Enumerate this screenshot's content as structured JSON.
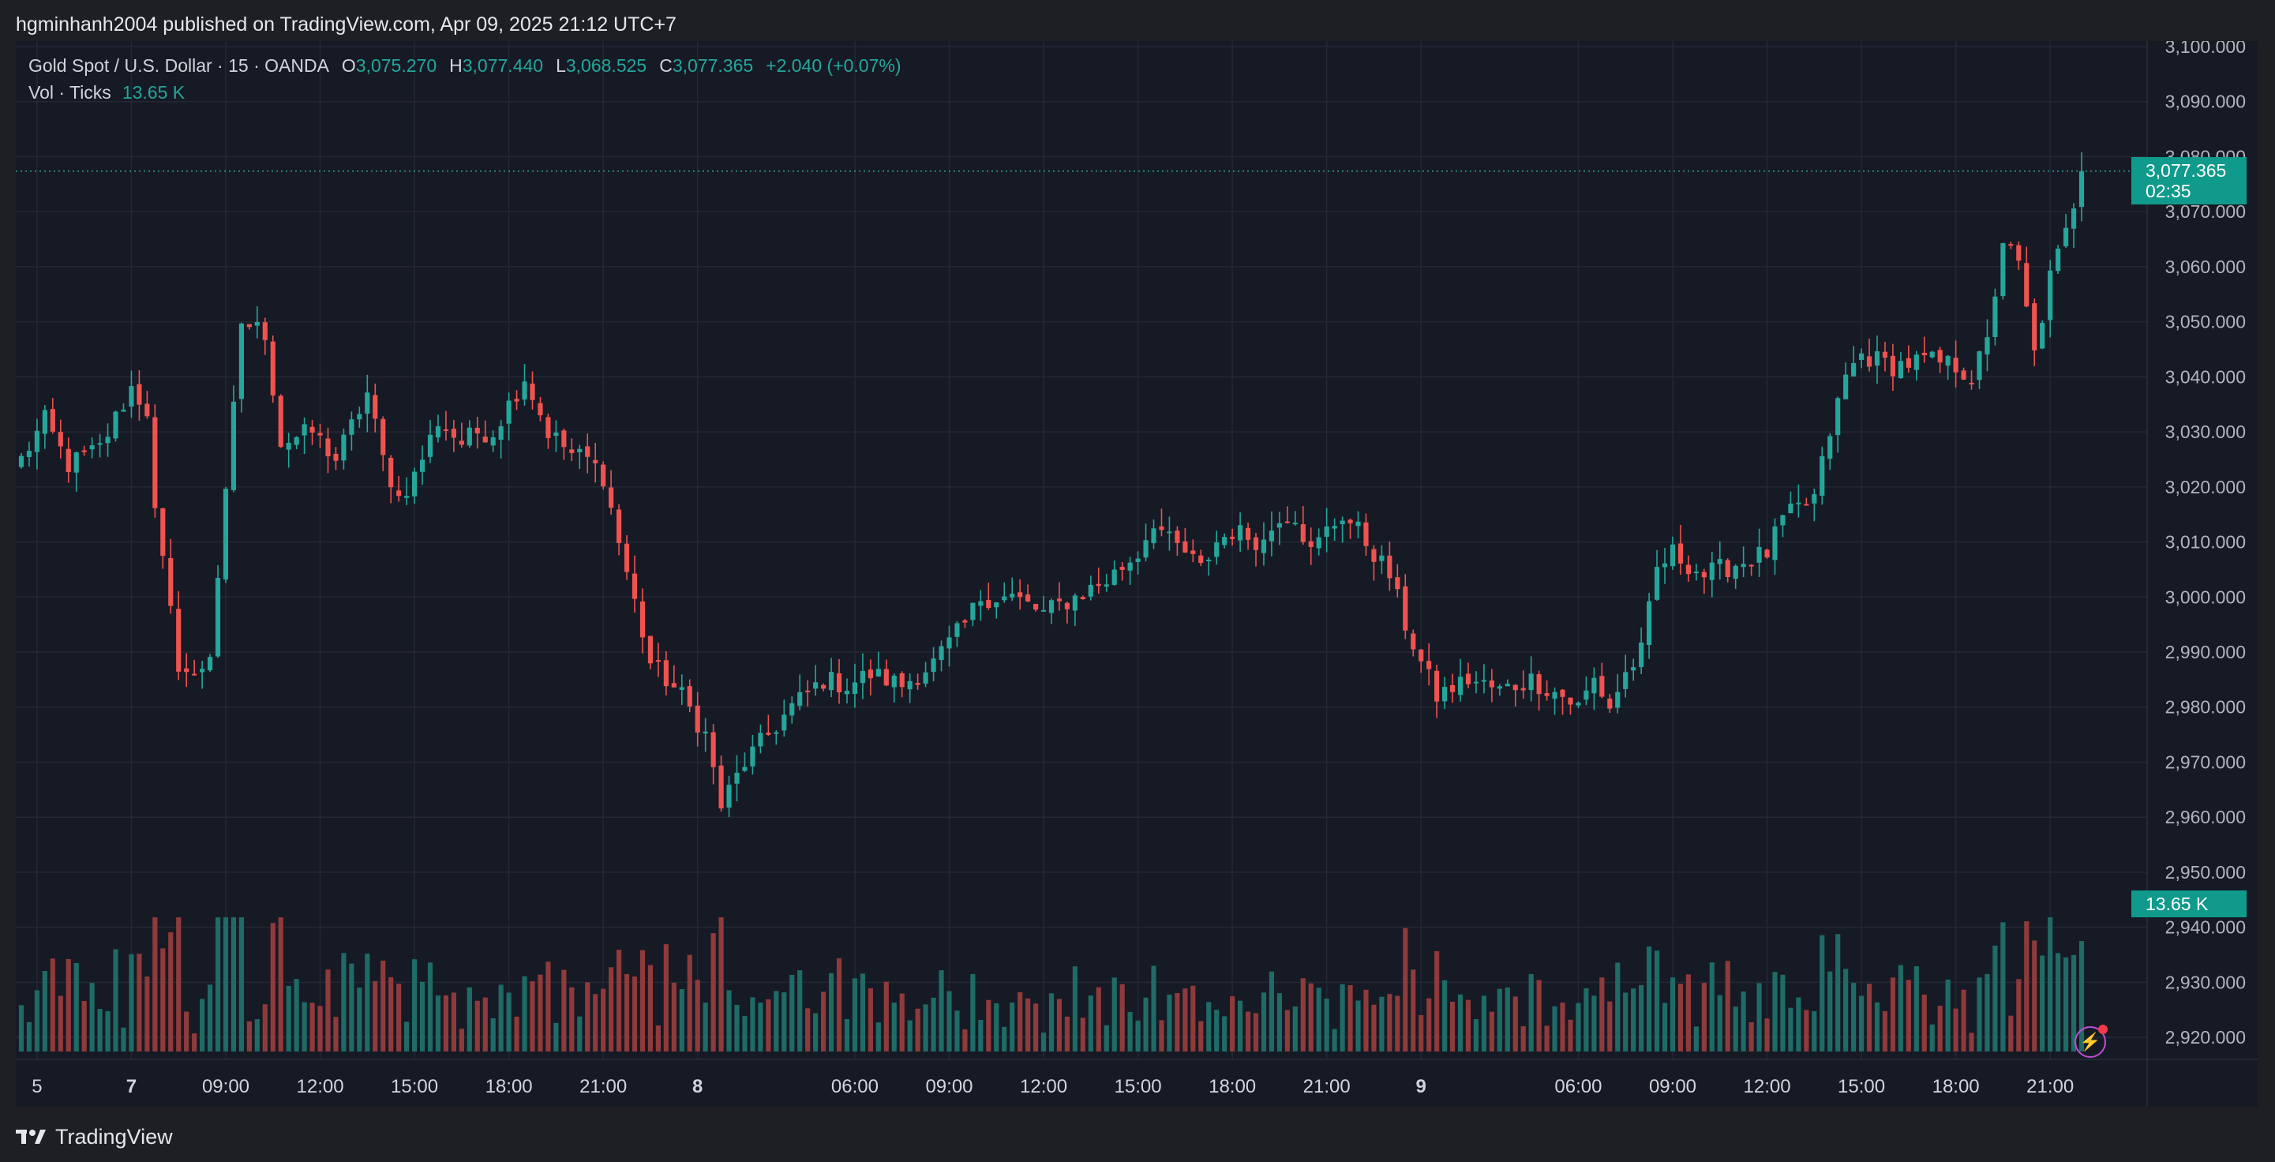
{
  "header": {
    "text": "hgminhanh2004 published on TradingView.com, Apr 09, 2025 21:12 UTC+7"
  },
  "legend": {
    "symbol": "Gold Spot / U.S. Dollar · 15 · OANDA",
    "o_label": "O",
    "o_value": "3,075.270",
    "h_label": "H",
    "h_value": "3,077.440",
    "l_label": "L",
    "l_value": "3,068.525",
    "c_label": "C",
    "c_value": "3,077.365",
    "change": "+2.040 (+0.07%)",
    "vol_label": "Vol · Ticks",
    "vol_value": "13.65 K"
  },
  "tags": {
    "price": "3,077.365",
    "countdown": "02:35",
    "volume": "13.65 K"
  },
  "footer": {
    "brand": "TradingView"
  },
  "icons": {
    "logo": "tradingview-logo-icon",
    "bolt": "lightning-bolt-icon"
  },
  "colors": {
    "up": "#26a69a",
    "down": "#ef5350",
    "up_volume": "#1f6b66",
    "down_volume": "#8f3a3b",
    "background": "#161a25",
    "grid": "#242835"
  },
  "chart_data": {
    "type": "candlestick",
    "interval": "15",
    "y_ticks": [
      "3,100.000",
      "3,090.000",
      "3,080.000",
      "3,070.000",
      "3,060.000",
      "3,050.000",
      "3,040.000",
      "3,030.000",
      "3,020.000",
      "3,010.000",
      "3,000.000",
      "2,990.000",
      "2,980.000",
      "2,970.000",
      "2,960.000",
      "2,950.000",
      "2,940.000",
      "2,930.000",
      "2,920.000"
    ],
    "ylim": [
      2916,
      3101
    ],
    "x_ticks": [
      {
        "label": "5",
        "bar": 2
      },
      {
        "label": "7",
        "bar": 14
      },
      {
        "label": "09:00",
        "bar": 26
      },
      {
        "label": "12:00",
        "bar": 38
      },
      {
        "label": "15:00",
        "bar": 50
      },
      {
        "label": "18:00",
        "bar": 62
      },
      {
        "label": "21:00",
        "bar": 74
      },
      {
        "label": "8",
        "bar": 86
      },
      {
        "label": "06:00",
        "bar": 106
      },
      {
        "label": "09:00",
        "bar": 118
      },
      {
        "label": "12:00",
        "bar": 130
      },
      {
        "label": "15:00",
        "bar": 142
      },
      {
        "label": "18:00",
        "bar": 154
      },
      {
        "label": "21:00",
        "bar": 166
      },
      {
        "label": "9",
        "bar": 178
      },
      {
        "label": "06:00",
        "bar": 198
      },
      {
        "label": "09:00",
        "bar": 210
      },
      {
        "label": "12:00",
        "bar": 222
      },
      {
        "label": "15:00",
        "bar": 234
      },
      {
        "label": "18:00",
        "bar": 246
      },
      {
        "label": "21:00",
        "bar": 258
      }
    ],
    "bold_x_ticks": [
      "7",
      "8",
      "9"
    ],
    "last_price": 3077.365,
    "anchors": [
      [
        0,
        3025
      ],
      [
        3,
        3032
      ],
      [
        6,
        3024
      ],
      [
        10,
        3027
      ],
      [
        14,
        3038
      ],
      [
        16,
        3034
      ],
      [
        17,
        3015
      ],
      [
        20,
        2988
      ],
      [
        22,
        2985
      ],
      [
        24,
        2990
      ],
      [
        26,
        3018
      ],
      [
        28,
        3050
      ],
      [
        31,
        3048
      ],
      [
        33,
        3028
      ],
      [
        37,
        3030
      ],
      [
        40,
        3025
      ],
      [
        44,
        3037
      ],
      [
        46,
        3025
      ],
      [
        48,
        3018
      ],
      [
        50,
        3022
      ],
      [
        53,
        3032
      ],
      [
        56,
        3028
      ],
      [
        58,
        3030
      ],
      [
        60,
        3030
      ],
      [
        62,
        3035
      ],
      [
        64,
        3040
      ],
      [
        67,
        3030
      ],
      [
        70,
        3026
      ],
      [
        72,
        3025
      ],
      [
        74,
        3022
      ],
      [
        76,
        3010
      ],
      [
        80,
        2988
      ],
      [
        84,
        2982
      ],
      [
        87,
        2975
      ],
      [
        89,
        2962
      ],
      [
        92,
        2970
      ],
      [
        95,
        2975
      ],
      [
        98,
        2980
      ],
      [
        102,
        2985
      ],
      [
        105,
        2984
      ],
      [
        108,
        2986
      ],
      [
        112,
        2984
      ],
      [
        116,
        2988
      ],
      [
        120,
        2995
      ],
      [
        122,
        3000
      ],
      [
        126,
        3000
      ],
      [
        130,
        2997
      ],
      [
        134,
        3000
      ],
      [
        138,
        3003
      ],
      [
        142,
        3008
      ],
      [
        144,
        3014
      ],
      [
        146,
        3010
      ],
      [
        148,
        3008
      ],
      [
        150,
        3005
      ],
      [
        152,
        3010
      ],
      [
        154,
        3012
      ],
      [
        158,
        3010
      ],
      [
        160,
        3015
      ],
      [
        162,
        3015
      ],
      [
        164,
        3008
      ],
      [
        166,
        3012
      ],
      [
        168,
        3015
      ],
      [
        170,
        3012
      ],
      [
        172,
        3008
      ],
      [
        174,
        3004
      ],
      [
        176,
        2995
      ],
      [
        178,
        2988
      ],
      [
        180,
        2982
      ],
      [
        184,
        2985
      ],
      [
        188,
        2983
      ],
      [
        192,
        2985
      ],
      [
        196,
        2982
      ],
      [
        198,
        2980
      ],
      [
        200,
        2985
      ],
      [
        202,
        2980
      ],
      [
        204,
        2986
      ],
      [
        206,
        2990
      ],
      [
        208,
        3005
      ],
      [
        210,
        3008
      ],
      [
        214,
        3004
      ],
      [
        218,
        3006
      ],
      [
        222,
        3008
      ],
      [
        224,
        3014
      ],
      [
        228,
        3018
      ],
      [
        230,
        3030
      ],
      [
        232,
        3040
      ],
      [
        234,
        3044
      ],
      [
        238,
        3042
      ],
      [
        242,
        3043
      ],
      [
        246,
        3042
      ],
      [
        248,
        3040
      ],
      [
        250,
        3046
      ],
      [
        252,
        3065
      ],
      [
        254,
        3060
      ],
      [
        256,
        3044
      ],
      [
        258,
        3058
      ],
      [
        260,
        3066
      ],
      [
        262,
        3077.365
      ]
    ],
    "bar_count": 263,
    "n_values": 263
  }
}
